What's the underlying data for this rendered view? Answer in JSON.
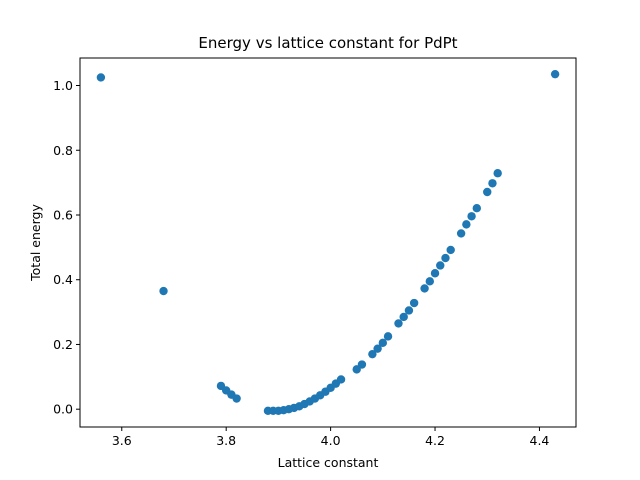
{
  "chart_data": {
    "type": "scatter",
    "title": "Energy vs lattice constant for PdPt",
    "xlabel": "Lattice constant",
    "ylabel": "Total energy",
    "xlim": [
      3.52,
      4.47
    ],
    "ylim": [
      -0.055,
      1.085
    ],
    "xticks": [
      3.6,
      3.8,
      4.0,
      4.2,
      4.4
    ],
    "xtick_labels": [
      "3.6",
      "3.8",
      "4.0",
      "4.2",
      "4.4"
    ],
    "yticks": [
      0.0,
      0.2,
      0.4,
      0.6,
      0.8,
      1.0
    ],
    "ytick_labels": [
      "0.0",
      "0.2",
      "0.4",
      "0.6",
      "0.8",
      "1.0"
    ],
    "grid": false,
    "marker_color": "#1f77b4",
    "series": [
      {
        "x": [
          3.56,
          3.68,
          3.79,
          3.8,
          3.81,
          3.82,
          3.88,
          3.89,
          3.9,
          3.91,
          3.92,
          3.93,
          3.94,
          3.95,
          3.96,
          3.97,
          3.98,
          3.99,
          4.0,
          4.01,
          4.02,
          4.05,
          4.06,
          4.08,
          4.09,
          4.1,
          4.11,
          4.13,
          4.14,
          4.15,
          4.16,
          4.18,
          4.19,
          4.2,
          4.21,
          4.22,
          4.23,
          4.25,
          4.26,
          4.27,
          4.28,
          4.3,
          4.31,
          4.32,
          4.43
        ],
        "y": [
          1.025,
          0.365,
          0.072,
          0.058,
          0.045,
          0.033,
          -0.005,
          -0.005,
          -0.005,
          -0.003,
          0.0,
          0.004,
          0.009,
          0.016,
          0.024,
          0.033,
          0.043,
          0.054,
          0.066,
          0.079,
          0.092,
          0.123,
          0.138,
          0.17,
          0.187,
          0.205,
          0.225,
          0.265,
          0.285,
          0.305,
          0.328,
          0.373,
          0.395,
          0.42,
          0.444,
          0.467,
          0.492,
          0.543,
          0.571,
          0.596,
          0.621,
          0.671,
          0.698,
          0.729,
          1.035
        ]
      }
    ]
  }
}
